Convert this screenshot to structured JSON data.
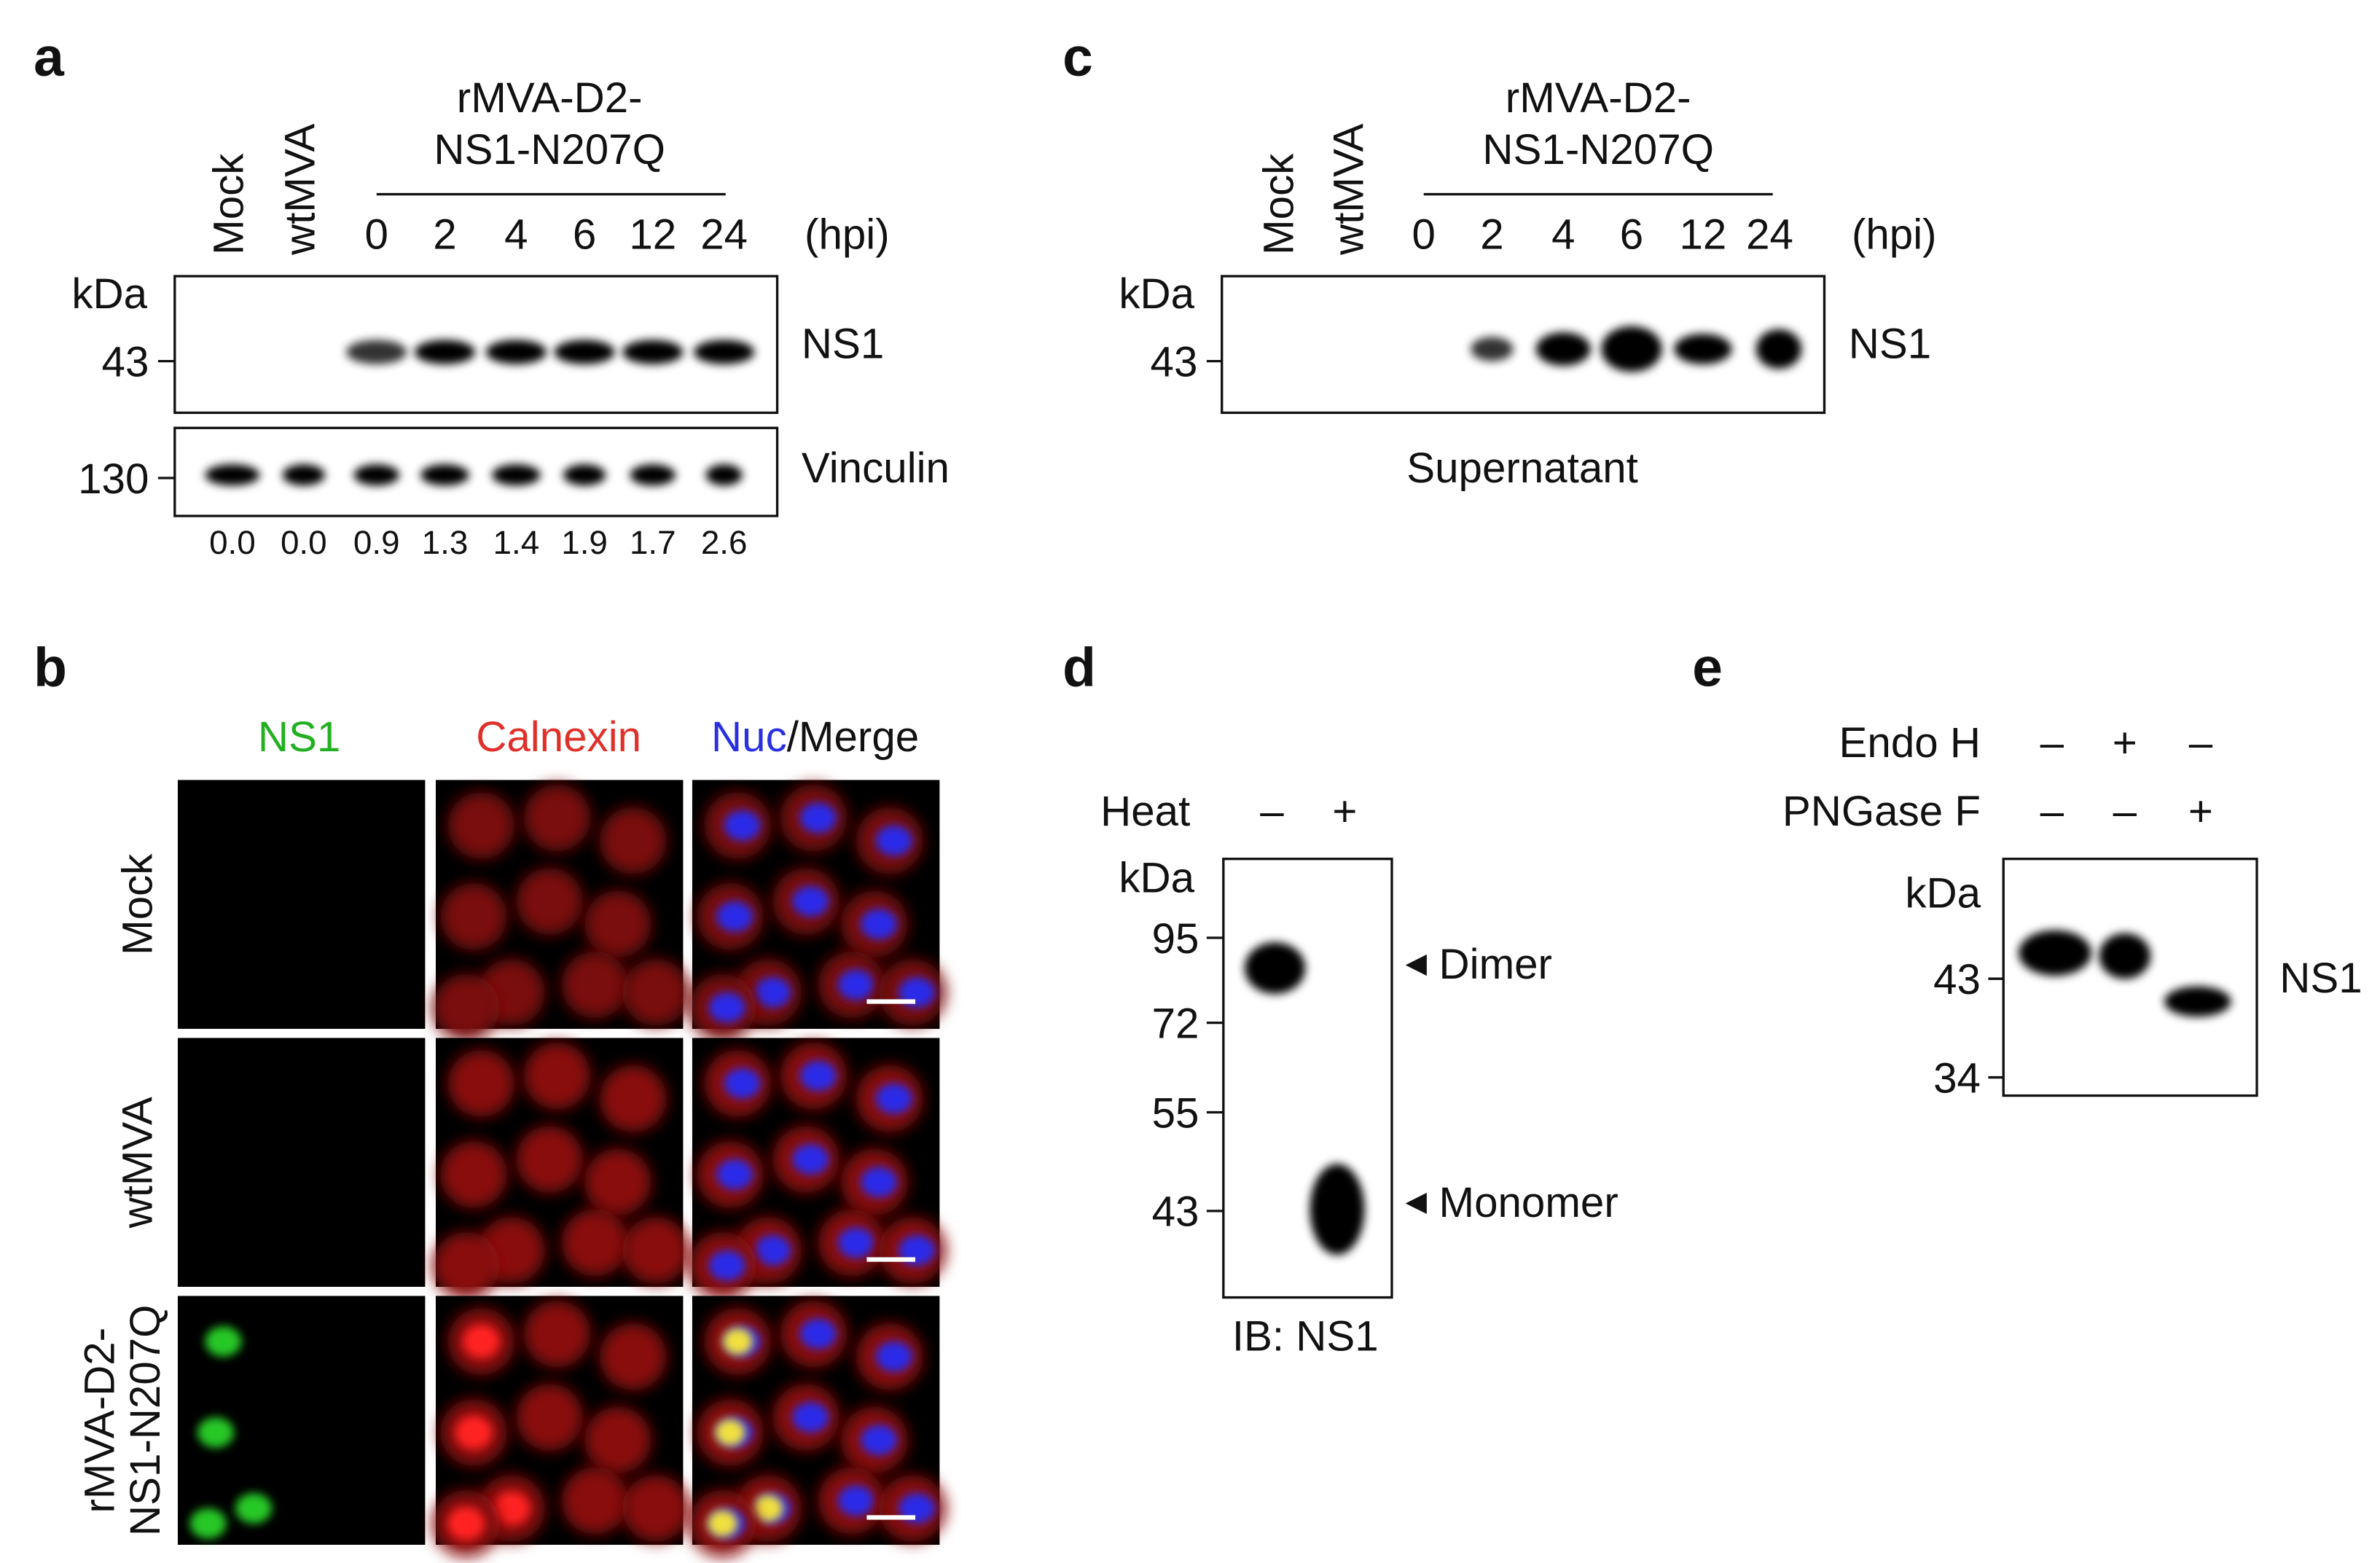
{
  "panels": {
    "a": {
      "letter": "a",
      "lanes": [
        "Mock",
        "wtMVA"
      ],
      "group_label_lines": [
        "rMVA-D2-",
        "NS1-N207Q"
      ],
      "timepoints": [
        "0",
        "2",
        "4",
        "6",
        "12",
        "24"
      ],
      "unit": "(hpi)",
      "kda_label": "kDa",
      "markers": [
        "43",
        "130"
      ],
      "blots": [
        "NS1",
        "Vinculin"
      ],
      "quantification": [
        "0.0",
        "0.0",
        "0.9",
        "1.3",
        "1.4",
        "1.9",
        "1.7",
        "2.6"
      ]
    },
    "b": {
      "letter": "b",
      "columns": [
        "NS1",
        "Calnexin"
      ],
      "merge_nuc": "Nuc",
      "merge_rest": "/Merge",
      "rows": [
        "Mock",
        "wtMVA"
      ],
      "row3_lines": [
        "rMVA-D2-",
        "NS1-N207Q"
      ]
    },
    "c": {
      "letter": "c",
      "lanes": [
        "Mock",
        "wtMVA"
      ],
      "group_label_lines": [
        "rMVA-D2-",
        "NS1-N207Q"
      ],
      "timepoints": [
        "0",
        "2",
        "4",
        "6",
        "12",
        "24"
      ],
      "unit": "(hpi)",
      "kda_label": "kDa",
      "marker": "43",
      "blot": "NS1",
      "caption": "Supernatant"
    },
    "d": {
      "letter": "d",
      "heat_label": "Heat",
      "heat_signs": [
        "–",
        "+"
      ],
      "kda_label": "kDa",
      "markers": [
        "95",
        "72",
        "55",
        "43"
      ],
      "band_labels": [
        "Dimer",
        "Monomer"
      ],
      "caption": "IB: NS1"
    },
    "e": {
      "letter": "e",
      "treatments": [
        {
          "name": "Endo H",
          "signs": [
            "–",
            "+",
            "–"
          ]
        },
        {
          "name": "PNGase F",
          "signs": [
            "–",
            "–",
            "+"
          ]
        }
      ],
      "kda_label": "kDa",
      "markers": [
        "43",
        "34"
      ],
      "blot": "NS1"
    }
  }
}
